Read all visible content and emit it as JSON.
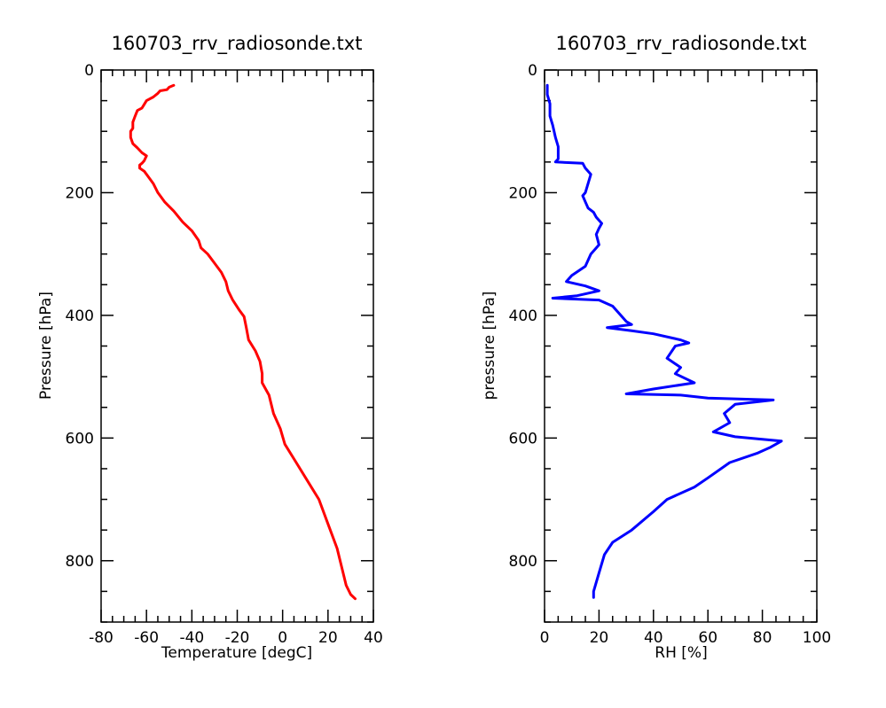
{
  "chart_data": [
    {
      "type": "line",
      "title": "160703_rrv_radiosonde.txt",
      "xlabel": "Temperature [degC]",
      "ylabel": "Pressure [hPa]",
      "xlim": [
        -80,
        40
      ],
      "ylim": [
        900,
        0
      ],
      "y_inverted": true,
      "x_ticks": [
        "-80",
        "-60",
        "-40",
        "-20",
        "0",
        "20",
        "40"
      ],
      "y_ticks": [
        "0",
        "200",
        "400",
        "600",
        "800"
      ],
      "grid": false,
      "series": [
        {
          "color": "#ff0000",
          "points": [
            [
              -48,
              25
            ],
            [
              -50,
              28
            ],
            [
              -51,
              32
            ],
            [
              -54,
              34
            ],
            [
              -55,
              38
            ],
            [
              -57,
              44
            ],
            [
              -60,
              50
            ],
            [
              -61,
              56
            ],
            [
              -62,
              62
            ],
            [
              -64,
              66
            ],
            [
              -65,
              75
            ],
            [
              -66,
              85
            ],
            [
              -66,
              95
            ],
            [
              -67,
              100
            ],
            [
              -67,
              110
            ],
            [
              -66,
              120
            ],
            [
              -64,
              127
            ],
            [
              -62,
              135
            ],
            [
              -60,
              140
            ],
            [
              -61,
              148
            ],
            [
              -62,
              152
            ],
            [
              -63,
              155
            ],
            [
              -63,
              160
            ],
            [
              -61,
              165
            ],
            [
              -59,
              175
            ],
            [
              -57,
              185
            ],
            [
              -55,
              200
            ],
            [
              -52,
              215
            ],
            [
              -48,
              230
            ],
            [
              -44,
              248
            ],
            [
              -40,
              262
            ],
            [
              -37,
              278
            ],
            [
              -36,
              290
            ],
            [
              -33,
              300
            ],
            [
              -30,
              315
            ],
            [
              -27,
              330
            ],
            [
              -25,
              345
            ],
            [
              -24,
              360
            ],
            [
              -22,
              375
            ],
            [
              -19,
              392
            ],
            [
              -17,
              402
            ],
            [
              -16,
              420
            ],
            [
              -15,
              440
            ],
            [
              -12,
              458
            ],
            [
              -10,
              475
            ],
            [
              -9,
              495
            ],
            [
              -9,
              510
            ],
            [
              -6,
              530
            ],
            [
              -4,
              560
            ],
            [
              -1,
              585
            ],
            [
              1,
              610
            ],
            [
              6,
              640
            ],
            [
              11,
              670
            ],
            [
              16,
              700
            ],
            [
              20,
              740
            ],
            [
              24,
              780
            ],
            [
              26,
              810
            ],
            [
              28,
              840
            ],
            [
              30,
              855
            ],
            [
              32,
              862
            ]
          ]
        }
      ]
    },
    {
      "type": "line",
      "title": "160703_rrv_radiosonde.txt",
      "xlabel": "RH [%]",
      "ylabel": "pressure [hPa]",
      "xlim": [
        0,
        100
      ],
      "ylim": [
        900,
        0
      ],
      "y_inverted": true,
      "x_ticks": [
        "0",
        "20",
        "40",
        "60",
        "80",
        "100"
      ],
      "y_ticks": [
        "0",
        "200",
        "400",
        "600",
        "800"
      ],
      "grid": false,
      "series": [
        {
          "color": "#0000ff",
          "points": [
            [
              1,
              25
            ],
            [
              1,
              40
            ],
            [
              2,
              55
            ],
            [
              2,
              75
            ],
            [
              3,
              90
            ],
            [
              4,
              110
            ],
            [
              5,
              125
            ],
            [
              5,
              145
            ],
            [
              4,
              150
            ],
            [
              14,
              152
            ],
            [
              15,
              160
            ],
            [
              17,
              170
            ],
            [
              16,
              185
            ],
            [
              15,
              200
            ],
            [
              14,
              205
            ],
            [
              15,
              215
            ],
            [
              16,
              225
            ],
            [
              18,
              232
            ],
            [
              19,
              240
            ],
            [
              21,
              250
            ],
            [
              20,
              258
            ],
            [
              19,
              268
            ],
            [
              20,
              285
            ],
            [
              17,
              300
            ],
            [
              15,
              320
            ],
            [
              10,
              335
            ],
            [
              8,
              345
            ],
            [
              15,
              352
            ],
            [
              20,
              360
            ],
            [
              12,
              368
            ],
            [
              3,
              372
            ],
            [
              20,
              375
            ],
            [
              25,
              385
            ],
            [
              27,
              395
            ],
            [
              30,
              410
            ],
            [
              32,
              415
            ],
            [
              23,
              420
            ],
            [
              32,
              425
            ],
            [
              40,
              430
            ],
            [
              50,
              440
            ],
            [
              53,
              445
            ],
            [
              48,
              450
            ],
            [
              45,
              470
            ],
            [
              50,
              485
            ],
            [
              48,
              495
            ],
            [
              55,
              510
            ],
            [
              40,
              520
            ],
            [
              30,
              528
            ],
            [
              50,
              530
            ],
            [
              60,
              535
            ],
            [
              84,
              538
            ],
            [
              70,
              545
            ],
            [
              66,
              560
            ],
            [
              68,
              575
            ],
            [
              62,
              590
            ],
            [
              70,
              598
            ],
            [
              87,
              605
            ],
            [
              83,
              615
            ],
            [
              78,
              625
            ],
            [
              68,
              640
            ],
            [
              60,
              665
            ],
            [
              55,
              680
            ],
            [
              45,
              700
            ],
            [
              40,
              720
            ],
            [
              32,
              750
            ],
            [
              25,
              770
            ],
            [
              22,
              790
            ],
            [
              20,
              820
            ],
            [
              18,
              850
            ],
            [
              18,
              860
            ]
          ]
        }
      ]
    }
  ]
}
